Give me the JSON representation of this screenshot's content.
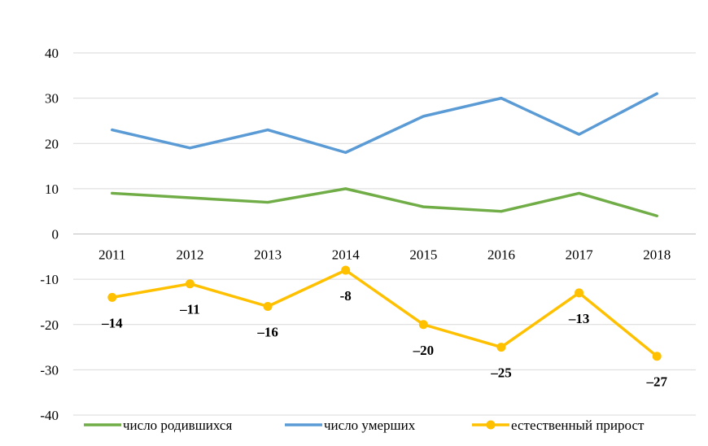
{
  "chart_data": {
    "type": "line",
    "title": "",
    "xlabel": "",
    "ylabel": "",
    "categories": [
      "2011",
      "2012",
      "2013",
      "2014",
      "2015",
      "2016",
      "2017",
      "2018"
    ],
    "ylim": [
      -40,
      40
    ],
    "yticks": [
      40,
      30,
      20,
      10,
      0,
      -10,
      -20,
      -30,
      -40
    ],
    "ytick_labels": [
      "40",
      "30",
      "20",
      "10",
      "0",
      "-10",
      "-20",
      "-30",
      "-40"
    ],
    "grid": "horizontal",
    "legend_position": "bottom",
    "series": [
      {
        "name": "число родившихся",
        "color": "#70ad47",
        "markers": false,
        "values": [
          9,
          8,
          7,
          10,
          6,
          5,
          9,
          4
        ]
      },
      {
        "name": "число умерших",
        "color": "#5b9bd5",
        "markers": false,
        "values": [
          23,
          19,
          23,
          18,
          26,
          30,
          22,
          31
        ]
      },
      {
        "name": "естественный прирост",
        "color": "#ffc000",
        "markers": true,
        "values": [
          -14,
          -11,
          -16,
          -8,
          -20,
          -25,
          -13,
          -27
        ],
        "data_labels": [
          "–14",
          "–11",
          "–16",
          "-8",
          "–20",
          "–25",
          "–13",
          "–27"
        ]
      }
    ]
  }
}
